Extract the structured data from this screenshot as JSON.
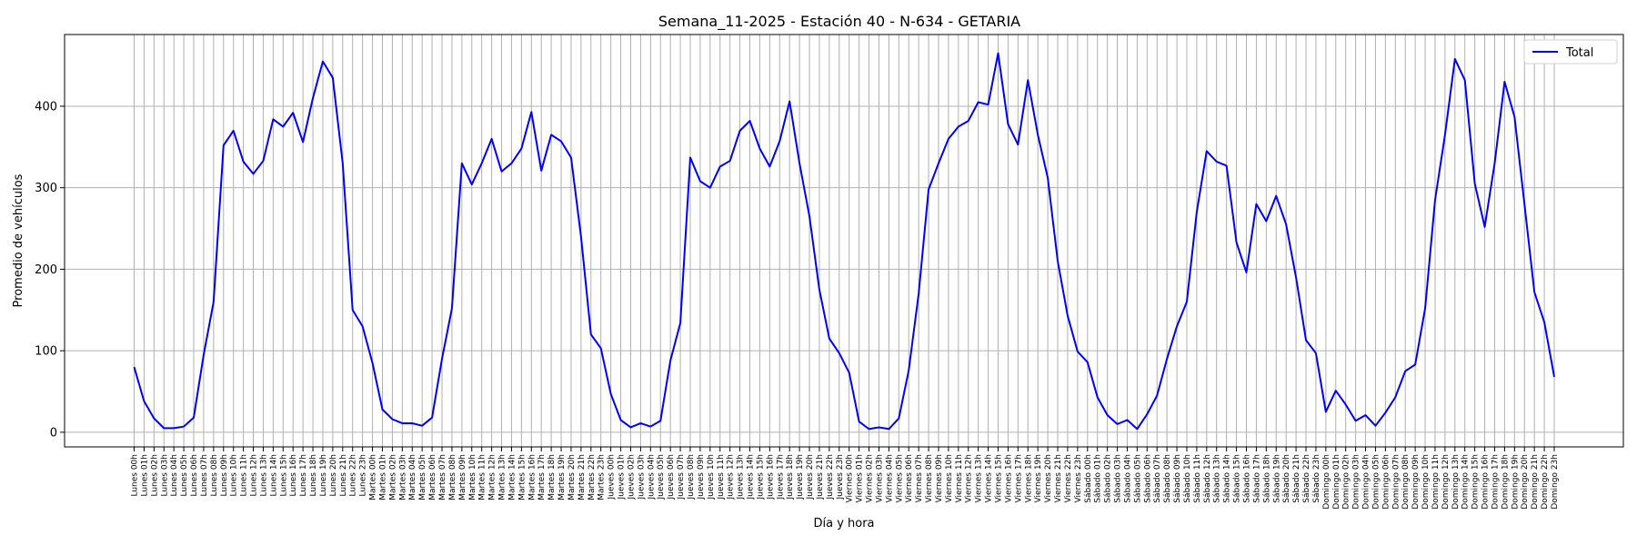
{
  "chart_data": {
    "type": "line",
    "title": "Semana_11-2025 - Estación 40 - N-634  - GETARIA",
    "xlabel": "Día y hora",
    "ylabel": "Promedio de vehículos",
    "ylim": [
      -18,
      488
    ],
    "yticks": [
      0,
      100,
      200,
      300,
      400
    ],
    "grid": true,
    "legend_position": "top-right",
    "line_color": "#0000ff",
    "categories": [
      "Lunes 00h",
      "Lunes 01h",
      "Lunes 02h",
      "Lunes 03h",
      "Lunes 04h",
      "Lunes 05h",
      "Lunes 06h",
      "Lunes 07h",
      "Lunes 08h",
      "Lunes 09h",
      "Lunes 10h",
      "Lunes 11h",
      "Lunes 12h",
      "Lunes 13h",
      "Lunes 14h",
      "Lunes 15h",
      "Lunes 16h",
      "Lunes 17h",
      "Lunes 18h",
      "Lunes 19h",
      "Lunes 20h",
      "Lunes 21h",
      "Lunes 22h",
      "Lunes 23h",
      "Martes 00h",
      "Martes 01h",
      "Martes 02h",
      "Martes 03h",
      "Martes 04h",
      "Martes 05h",
      "Martes 06h",
      "Martes 07h",
      "Martes 08h",
      "Martes 09h",
      "Martes 10h",
      "Martes 11h",
      "Martes 12h",
      "Martes 13h",
      "Martes 14h",
      "Martes 15h",
      "Martes 16h",
      "Martes 17h",
      "Martes 18h",
      "Martes 19h",
      "Martes 20h",
      "Martes 21h",
      "Martes 22h",
      "Martes 23h",
      "Jueves 00h",
      "Jueves 01h",
      "Jueves 02h",
      "Jueves 03h",
      "Jueves 04h",
      "Jueves 05h",
      "Jueves 06h",
      "Jueves 07h",
      "Jueves 08h",
      "Jueves 09h",
      "Jueves 10h",
      "Jueves 11h",
      "Jueves 12h",
      "Jueves 13h",
      "Jueves 14h",
      "Jueves 15h",
      "Jueves 16h",
      "Jueves 17h",
      "Jueves 18h",
      "Jueves 19h",
      "Jueves 20h",
      "Jueves 21h",
      "Jueves 22h",
      "Jueves 23h",
      "Viernes 00h",
      "Viernes 01h",
      "Viernes 02h",
      "Viernes 03h",
      "Viernes 04h",
      "Viernes 05h",
      "Viernes 06h",
      "Viernes 07h",
      "Viernes 08h",
      "Viernes 09h",
      "Viernes 10h",
      "Viernes 11h",
      "Viernes 12h",
      "Viernes 13h",
      "Viernes 14h",
      "Viernes 15h",
      "Viernes 16h",
      "Viernes 17h",
      "Viernes 18h",
      "Viernes 19h",
      "Viernes 20h",
      "Viernes 21h",
      "Viernes 22h",
      "Viernes 23h",
      "Sábado 00h",
      "Sábado 01h",
      "Sábado 02h",
      "Sábado 03h",
      "Sábado 04h",
      "Sábado 05h",
      "Sábado 06h",
      "Sábado 07h",
      "Sábado 08h",
      "Sábado 09h",
      "Sábado 10h",
      "Sábado 11h",
      "Sábado 12h",
      "Sábado 13h",
      "Sábado 14h",
      "Sábado 15h",
      "Sábado 16h",
      "Sábado 17h",
      "Sábado 18h",
      "Sábado 19h",
      "Sábado 20h",
      "Sábado 21h",
      "Sábado 22h",
      "Sábado 23h",
      "Domingo 00h",
      "Domingo 01h",
      "Domingo 02h",
      "Domingo 03h",
      "Domingo 04h",
      "Domingo 05h",
      "Domingo 06h",
      "Domingo 07h",
      "Domingo 08h",
      "Domingo 09h",
      "Domingo 10h",
      "Domingo 11h",
      "Domingo 12h",
      "Domingo 13h",
      "Domingo 14h",
      "Domingo 15h",
      "Domingo 16h",
      "Domingo 17h",
      "Domingo 18h",
      "Domingo 19h",
      "Domingo 20h",
      "Domingo 21h",
      "Domingo 22h",
      "Domingo 23h"
    ],
    "series": [
      {
        "name": "Total",
        "color": "#0000ff",
        "values": [
          80,
          38,
          17,
          5,
          5,
          7,
          18,
          95,
          160,
          352,
          370,
          332,
          317,
          333,
          384,
          375,
          392,
          356,
          410,
          455,
          435,
          330,
          150,
          130,
          85,
          28,
          16,
          11,
          11,
          8,
          18,
          90,
          152,
          330,
          304,
          330,
          360,
          320,
          330,
          348,
          393,
          321,
          365,
          357,
          337,
          240,
          120,
          103,
          47,
          15,
          6,
          11,
          7,
          14,
          88,
          134,
          337,
          308,
          300,
          326,
          333,
          370,
          382,
          348,
          326,
          357,
          406,
          330,
          265,
          175,
          115,
          97,
          73,
          13,
          4,
          6,
          4,
          17,
          76,
          170,
          298,
          330,
          360,
          375,
          382,
          405,
          402,
          465,
          378,
          353,
          432,
          365,
          312,
          210,
          143,
          99,
          86,
          43,
          21,
          10,
          15,
          4,
          22,
          45,
          90,
          130,
          160,
          270,
          345,
          332,
          327,
          233,
          196,
          280,
          259,
          290,
          255,
          190,
          113,
          97,
          25,
          51,
          34,
          14,
          21,
          8,
          24,
          43,
          75,
          83,
          152,
          285,
          365,
          458,
          432,
          305,
          252,
          330,
          430,
          387,
          280,
          172,
          135,
          68
        ]
      }
    ]
  }
}
